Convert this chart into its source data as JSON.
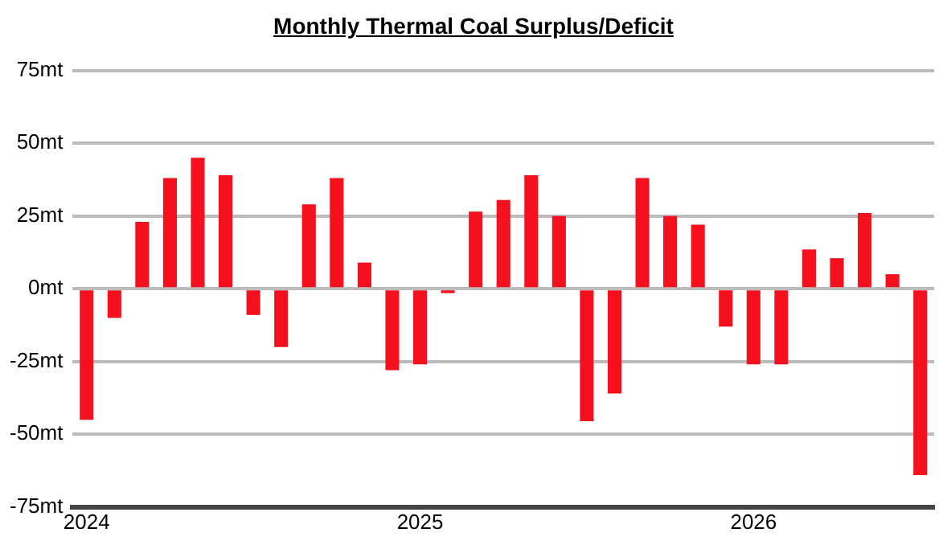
{
  "chart_data": {
    "type": "bar",
    "title": "Monthly Thermal Coal Surplus/Deficit",
    "categories": [
      "2024",
      null,
      null,
      null,
      null,
      null,
      null,
      null,
      null,
      null,
      null,
      null,
      "2025",
      null,
      null,
      null,
      null,
      null,
      null,
      null,
      null,
      null,
      null,
      null,
      "2026",
      null,
      null,
      null,
      null,
      null,
      null
    ],
    "series": [
      {
        "color": "#f5101e",
        "values": [
          -45,
          -10,
          23,
          38,
          45,
          39,
          -9,
          -20,
          29,
          38,
          9,
          -28,
          -26,
          -1.5,
          26.5,
          30.5,
          39,
          25,
          -45.5,
          -36,
          38,
          25,
          22,
          -13,
          -26,
          -26,
          13.5,
          10.5,
          26,
          5,
          -64
        ]
      }
    ],
    "ylim": [
      -75,
      75
    ],
    "yticks": [
      {
        "value": -75,
        "label": "-75mt"
      },
      {
        "value": -50,
        "label": "-50mt"
      },
      {
        "value": -25,
        "label": "-25mt"
      },
      {
        "value": 0,
        "label": "0mt"
      },
      {
        "value": 25,
        "label": "25mt"
      },
      {
        "value": 50,
        "label": "50mt"
      },
      {
        "value": 75,
        "label": "75mt"
      }
    ],
    "grid": "y",
    "legend": false
  }
}
